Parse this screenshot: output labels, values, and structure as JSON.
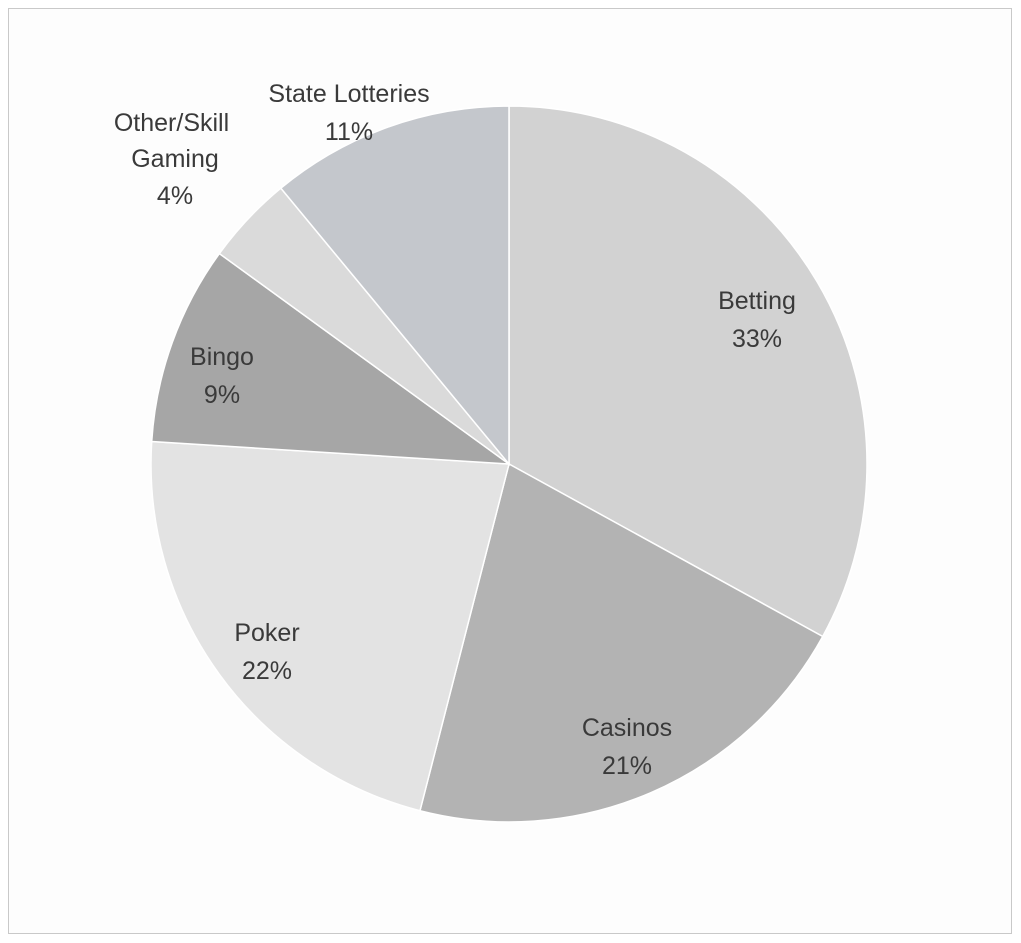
{
  "chart_data": {
    "type": "pie",
    "title": "",
    "slices": [
      {
        "category": "Betting",
        "label": "Betting",
        "value": 33,
        "value_label": "33%",
        "color": "#d2d2d2"
      },
      {
        "category": "Casinos",
        "label": "Casinos",
        "value": 21,
        "value_label": "21%",
        "color": "#b3b3b3"
      },
      {
        "category": "Poker",
        "label": "Poker",
        "value": 22,
        "value_label": "22%",
        "color": "#e3e3e3"
      },
      {
        "category": "Bingo",
        "label": "Bingo",
        "value": 9,
        "value_label": "9%",
        "color": "#a6a6a6"
      },
      {
        "category": "Other/Skill Gaming",
        "label": "Other/Skill Gaming",
        "value": 4,
        "value_label": "4%",
        "color": "#dadada"
      },
      {
        "category": "State Lotteries",
        "label": "State Lotteries",
        "value": 11,
        "value_label": "11%",
        "color": "#c4c7cc"
      }
    ],
    "legend": "none",
    "start_angle": "12 o'clock",
    "direction": "clockwise"
  }
}
